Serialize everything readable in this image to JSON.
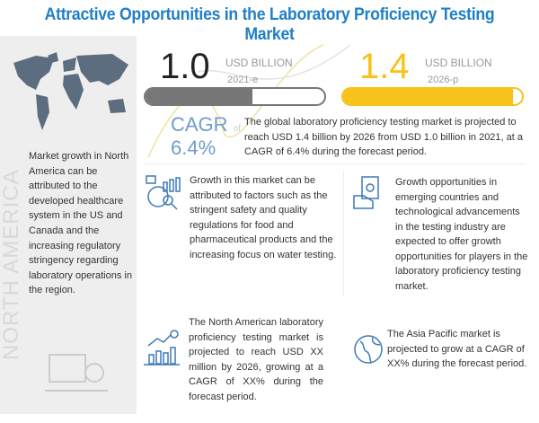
{
  "title": "Attractive Opportunities in the Laboratory Proficiency Testing Market",
  "left_panel": {
    "text": "Market growth in North America can be attributed to the developed healthcare system in the US and Canada and the increasing regulatory stringency regarding laboratory operations in the region.",
    "vertical_label": "NORTH AMERICA"
  },
  "stat_2021": {
    "value": "1.0",
    "unit": "USD BILLION",
    "year": "2021-e",
    "bar_fill_percent": 60,
    "color": "#777777"
  },
  "stat_2026": {
    "value": "1.4",
    "unit": "USD BILLION",
    "year": "2026-p",
    "bar_fill_percent": 95,
    "color": "#f7c21b"
  },
  "cagr": {
    "label": "CAGR",
    "of": "of",
    "value": "6.4%",
    "color": "#6f9ccc"
  },
  "summary": "The global laboratory proficiency testing market is projected to reach USD 1.4 billion by 2026 from USD 1.0 billion in 2021, at a CAGR of 6.4% during the forecast period.",
  "insights": [
    {
      "icon": "analytics-icon",
      "text": "Growth in this market can be attributed to factors such as the stringent safety and quality regulations for food and pharmaceutical products and the increasing focus on water testing."
    },
    {
      "icon": "money-hand-icon",
      "text": "Growth opportunities in emerging countries and technological advancements in the testing industry are expected to offer growth opportunities for players in the laboratory proficiency testing market."
    },
    {
      "icon": "growth-chart-icon",
      "text": "The North American laboratory proficiency testing market is projected to reach USD XX million by 2026, growing at a CAGR of XX% during the forecast period."
    },
    {
      "icon": "globe-icon",
      "text": "The Asia Pacific market is projected to grow at a CAGR of XX% during the forecast period."
    }
  ],
  "colors": {
    "title": "#1f7fc6",
    "icon": "#3d79b8"
  }
}
